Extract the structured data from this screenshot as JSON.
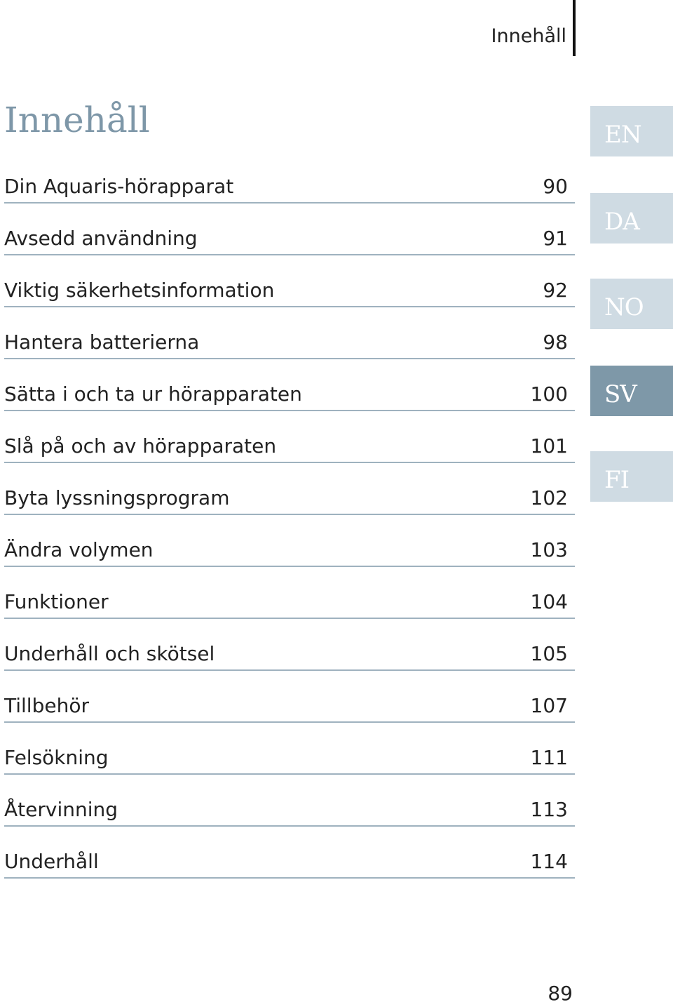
{
  "running_header": "Innehåll",
  "title": "Innehåll",
  "toc": [
    {
      "label": "Din Aquaris-hörapparat",
      "page": "90"
    },
    {
      "label": "Avsedd användning",
      "page": "91"
    },
    {
      "label": "Viktig säkerhetsinformation",
      "page": "92"
    },
    {
      "label": "Hantera batterierna",
      "page": "98"
    },
    {
      "label": "Sätta i och ta ur hörapparaten",
      "page": "100"
    },
    {
      "label": "Slå på och av hörapparaten",
      "page": "101"
    },
    {
      "label": "Byta lyssningsprogram",
      "page": "102"
    },
    {
      "label": "Ändra volymen",
      "page": "103"
    },
    {
      "label": "Funktioner",
      "page": "104"
    },
    {
      "label": "Underhåll och skötsel",
      "page": "105"
    },
    {
      "label": "Tillbehör",
      "page": "107"
    },
    {
      "label": "Felsökning",
      "page": "111"
    },
    {
      "label": "Återvinning",
      "page": "113"
    },
    {
      "label": "Underhåll",
      "page": "114"
    }
  ],
  "language_tabs": [
    {
      "code": "EN",
      "active": false
    },
    {
      "code": "DA",
      "active": false
    },
    {
      "code": "NO",
      "active": false
    },
    {
      "code": "SV",
      "active": true
    },
    {
      "code": "FI",
      "active": false
    }
  ],
  "page_number": "89",
  "colors": {
    "accent": "#7e98a8",
    "tab_inactive": "#cfdbe3",
    "rule": "#9fb2bf"
  }
}
